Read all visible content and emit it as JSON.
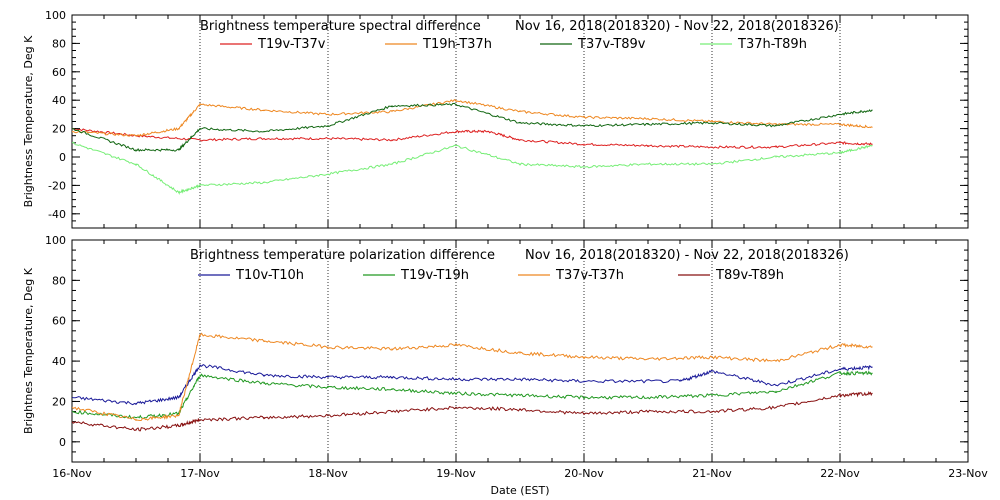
{
  "chart_data": [
    {
      "type": "line",
      "title": "Brightness temperature spectral difference",
      "date_range": "Nov 16, 2018(2018320)  -  Nov 22, 2018(2018326)",
      "ylabel": "Brightness Temperature, Deg K",
      "ylim": [
        -50,
        100
      ],
      "yticks": [
        -40,
        -20,
        0,
        20,
        40,
        60,
        80,
        100
      ],
      "grid": "vertical dotted lines at each day",
      "legend_position": "top",
      "series": [
        {
          "name": "T19v-T37v",
          "color": "#dd2020",
          "x": [
            "2018-11-16 00:00",
            "2018-11-16 12:00",
            "2018-11-17 00:00",
            "2018-11-17 12:00",
            "2018-11-18 00:00",
            "2018-11-18 12:00",
            "2018-11-19 00:00",
            "2018-11-19 06:00",
            "2018-11-19 12:00",
            "2018-11-20 00:00",
            "2018-11-20 12:00",
            "2018-11-21 00:00",
            "2018-11-21 12:00",
            "2018-11-22 00:00",
            "2018-11-22 06:00"
          ],
          "y": [
            20,
            15,
            12,
            13,
            13,
            12,
            18,
            18,
            12,
            9,
            8,
            7,
            7,
            10,
            9
          ]
        },
        {
          "name": "T19h-T37h",
          "color": "#ee8822",
          "x": [
            "2018-11-16 00:00",
            "2018-11-16 12:00",
            "2018-11-16 20:00",
            "2018-11-17 00:00",
            "2018-11-17 12:00",
            "2018-11-18 00:00",
            "2018-11-18 12:00",
            "2018-11-19 00:00",
            "2018-11-19 12:00",
            "2018-11-20 00:00",
            "2018-11-20 12:00",
            "2018-11-21 00:00",
            "2018-11-21 12:00",
            "2018-11-22 00:00",
            "2018-11-22 06:00"
          ],
          "y": [
            18,
            15,
            20,
            37,
            33,
            30,
            32,
            40,
            32,
            28,
            27,
            25,
            23,
            23,
            21
          ]
        },
        {
          "name": "T37v-T89v",
          "color": "#116611",
          "x": [
            "2018-11-16 00:00",
            "2018-11-16 12:00",
            "2018-11-16 20:00",
            "2018-11-17 00:00",
            "2018-11-17 12:00",
            "2018-11-18 00:00",
            "2018-11-18 12:00",
            "2018-11-19 00:00",
            "2018-11-19 12:00",
            "2018-11-20 00:00",
            "2018-11-20 12:00",
            "2018-11-21 00:00",
            "2018-11-21 12:00",
            "2018-11-22 00:00",
            "2018-11-22 06:00"
          ],
          "y": [
            20,
            5,
            5,
            20,
            18,
            22,
            36,
            37,
            24,
            22,
            23,
            24,
            22,
            30,
            33
          ]
        },
        {
          "name": "T37h-T89h",
          "color": "#77ee77",
          "x": [
            "2018-11-16 00:00",
            "2018-11-16 12:00",
            "2018-11-16 20:00",
            "2018-11-17 00:00",
            "2018-11-17 12:00",
            "2018-11-18 00:00",
            "2018-11-18 12:00",
            "2018-11-19 00:00",
            "2018-11-19 12:00",
            "2018-11-20 00:00",
            "2018-11-20 12:00",
            "2018-11-21 00:00",
            "2018-11-21 12:00",
            "2018-11-22 00:00",
            "2018-11-22 06:00"
          ],
          "y": [
            10,
            -5,
            -25,
            -20,
            -18,
            -12,
            -5,
            8,
            -5,
            -7,
            -5,
            -5,
            0,
            3,
            8
          ]
        }
      ]
    },
    {
      "type": "line",
      "title": "Brightness temperature polarization difference",
      "date_range": "Nov 16, 2018(2018320)  -  Nov 22, 2018(2018326)",
      "ylabel": "Brightnes Temperature, Deg K",
      "xlabel": "Date (EST)",
      "ylim": [
        -10,
        100
      ],
      "yticks": [
        0,
        20,
        40,
        60,
        80,
        100
      ],
      "xticks": [
        "16-Nov",
        "17-Nov",
        "18-Nov",
        "19-Nov",
        "20-Nov",
        "21-Nov",
        "22-Nov",
        "23-Nov"
      ],
      "xlim": [
        "2018-11-16",
        "2018-11-23"
      ],
      "grid": "vertical dotted lines at each day",
      "legend_position": "top",
      "series": [
        {
          "name": "T10v-T10h",
          "color": "#1a1a99",
          "x": [
            "2018-11-16 00:00",
            "2018-11-16 12:00",
            "2018-11-16 20:00",
            "2018-11-17 00:00",
            "2018-11-17 12:00",
            "2018-11-18 00:00",
            "2018-11-18 12:00",
            "2018-11-19 00:00",
            "2018-11-19 12:00",
            "2018-11-20 00:00",
            "2018-11-20 18:00",
            "2018-11-21 00:00",
            "2018-11-21 12:00",
            "2018-11-22 00:00",
            "2018-11-22 06:00"
          ],
          "y": [
            22,
            19,
            22,
            38,
            33,
            32,
            32,
            31,
            31,
            30,
            30,
            35,
            28,
            36,
            37
          ]
        },
        {
          "name": "T19v-T19h",
          "color": "#229922",
          "x": [
            "2018-11-16 00:00",
            "2018-11-16 12:00",
            "2018-11-16 20:00",
            "2018-11-17 00:00",
            "2018-11-17 12:00",
            "2018-11-18 00:00",
            "2018-11-18 12:00",
            "2018-11-19 00:00",
            "2018-11-19 12:00",
            "2018-11-20 00:00",
            "2018-11-20 12:00",
            "2018-11-21 00:00",
            "2018-11-21 12:00",
            "2018-11-22 00:00",
            "2018-11-22 06:00"
          ],
          "y": [
            15,
            12,
            14,
            33,
            29,
            27,
            26,
            24,
            23,
            22,
            22,
            23,
            25,
            34,
            34
          ]
        },
        {
          "name": "T37v-T37h",
          "color": "#ee8822",
          "x": [
            "2018-11-16 00:00",
            "2018-11-16 12:00",
            "2018-11-16 20:00",
            "2018-11-17 00:00",
            "2018-11-17 12:00",
            "2018-11-18 00:00",
            "2018-11-18 12:00",
            "2018-11-19 00:00",
            "2018-11-19 12:00",
            "2018-11-20 00:00",
            "2018-11-20 12:00",
            "2018-11-21 00:00",
            "2018-11-21 12:00",
            "2018-11-22 00:00",
            "2018-11-22 06:00"
          ],
          "y": [
            17,
            11,
            13,
            53,
            50,
            47,
            46,
            48,
            44,
            42,
            41,
            42,
            40,
            48,
            47
          ]
        },
        {
          "name": "T89v-T89h",
          "color": "#881111",
          "x": [
            "2018-11-16 00:00",
            "2018-11-16 12:00",
            "2018-11-16 20:00",
            "2018-11-17 00:00",
            "2018-11-17 12:00",
            "2018-11-18 00:00",
            "2018-11-18 12:00",
            "2018-11-19 00:00",
            "2018-11-19 12:00",
            "2018-11-20 00:00",
            "2018-11-20 12:00",
            "2018-11-21 00:00",
            "2018-11-21 12:00",
            "2018-11-22 00:00",
            "2018-11-22 06:00"
          ],
          "y": [
            10,
            6,
            8,
            11,
            12,
            13,
            15,
            17,
            16,
            14,
            15,
            15,
            17,
            23,
            24
          ]
        }
      ]
    }
  ]
}
